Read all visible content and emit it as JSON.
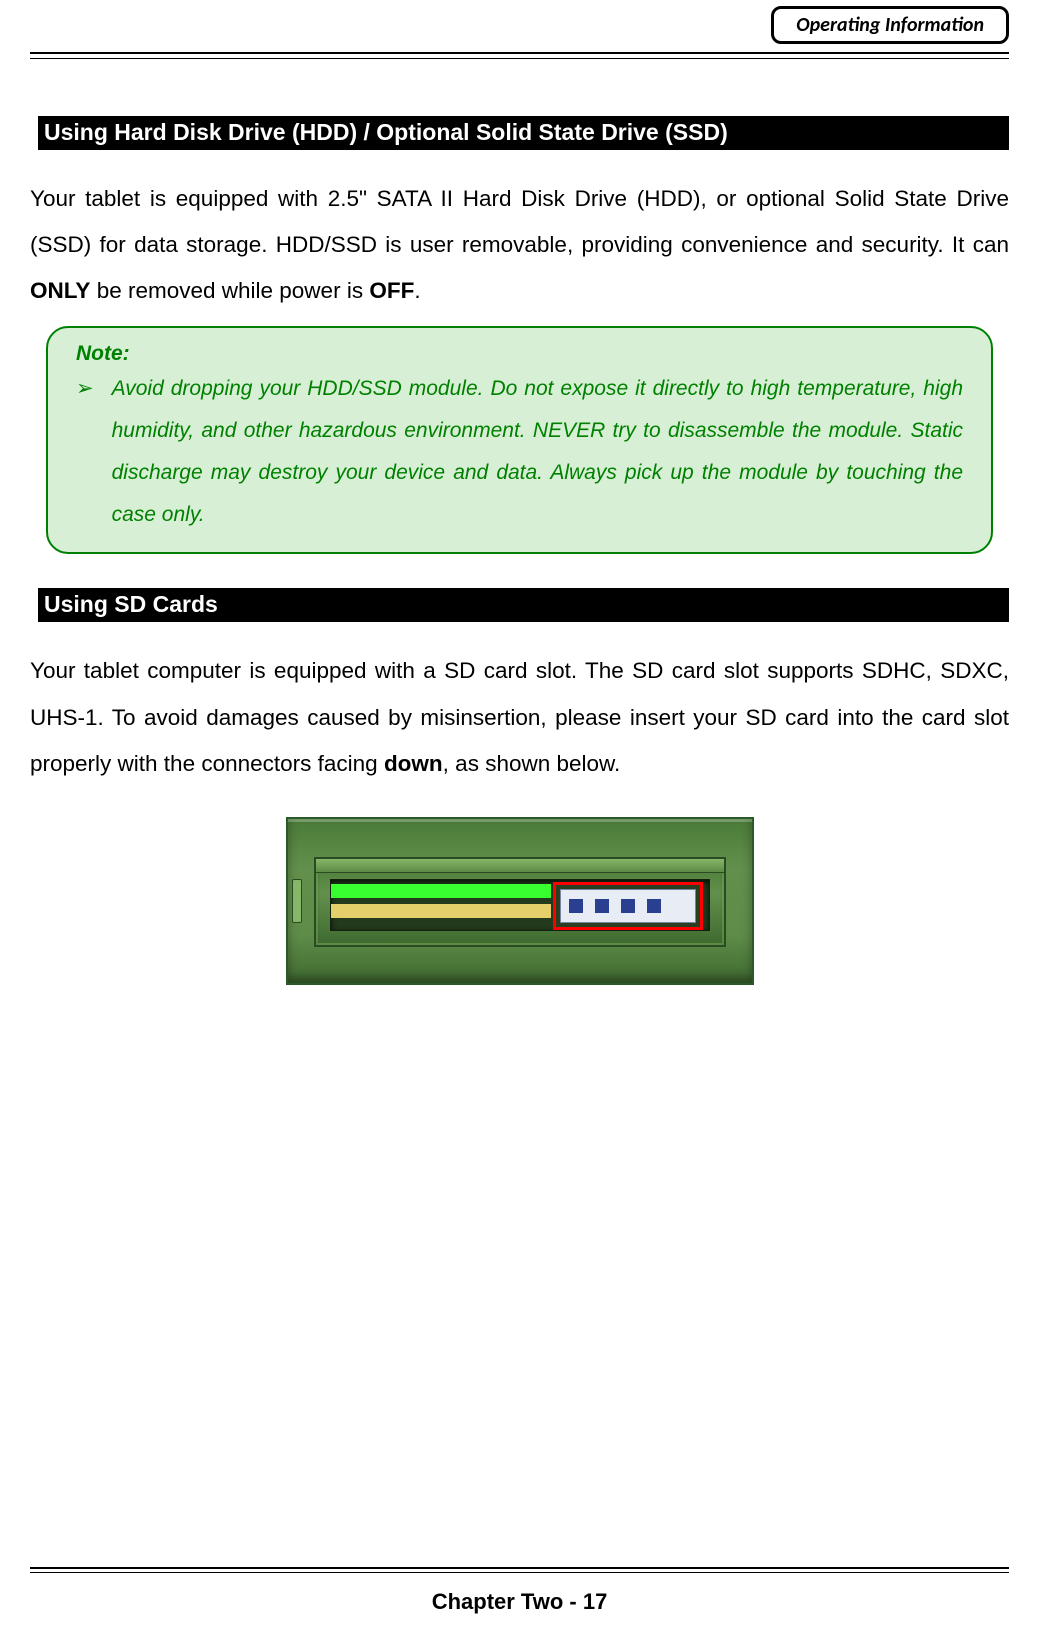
{
  "header": {
    "tab_label": "Operating Information"
  },
  "section1": {
    "heading": " Using Hard Disk Drive (HDD) / Optional Solid State Drive (SSD)",
    "para_pre": "Your tablet is equipped with 2.5\" SATA II Hard Disk Drive (HDD), or optional Solid State Drive (SSD) for data storage. HDD/SSD is user removable, providing convenience and security. It can ",
    "bold1": "ONLY",
    "para_mid": " be removed while power is ",
    "bold2": "OFF",
    "para_post": "."
  },
  "note": {
    "title": "Note:",
    "bullet": "➢",
    "text": "Avoid dropping your HDD/SSD module. Do not expose it directly to high temperature, high humidity, and other hazardous environment. NEVER try to disassemble the module. Static discharge may destroy your device and data. Always pick up the module by touching the case only.",
    "border_color": "#008000",
    "bg_color": "#d7efd4",
    "text_color": "#008000"
  },
  "section2": {
    "heading": " Using SD Cards",
    "para_pre": "Your tablet computer is equipped with a SD card slot. The SD card slot supports SDHC, SDXC, UHS-1. To avoid damages caused by misinsertion, please insert your SD card into the card slot properly with the connectors facing ",
    "bold1": "down",
    "para_post": ", as shown below."
  },
  "diagram": {
    "frame_border_color": "#ff0000",
    "green_accent": "#38ff2f",
    "gold_accent": "#e4cf6a",
    "pin_color": "#2a3f8f",
    "housing_color_top": "#4a7a38",
    "housing_color_bottom": "#3f6a30",
    "sd_pin_count": 4
  },
  "footer": {
    "text": "Chapter Two - 17"
  }
}
